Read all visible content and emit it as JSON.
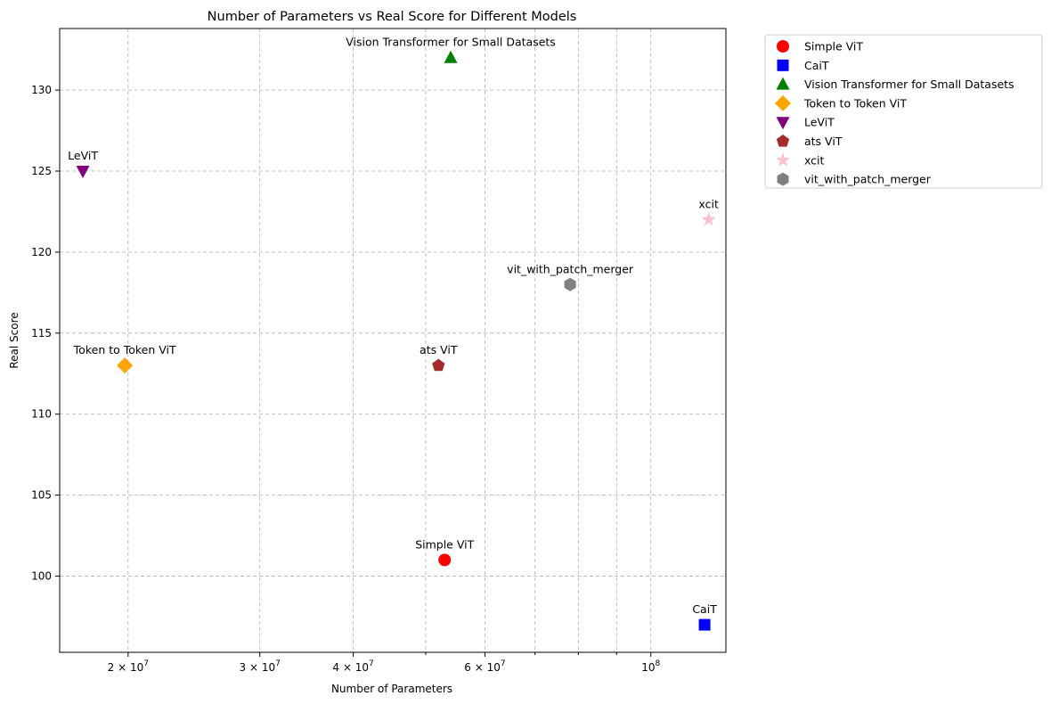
{
  "chart_data": {
    "type": "scatter",
    "title": "Number of Parameters vs Real Score for Different Models",
    "xlabel": "Number of Parameters",
    "ylabel": "Real Score",
    "xscale": "log",
    "xlim": [
      16200000,
      126000000
    ],
    "ylim": [
      95.3,
      133.8
    ],
    "grid": true,
    "legend_position": "outside-top-right",
    "x_ticks": [
      {
        "value": 20000000,
        "mantissa": "2",
        "label": "2 × 10^7"
      },
      {
        "value": 30000000,
        "mantissa": "3",
        "label": "3 × 10^7"
      },
      {
        "value": 40000000,
        "mantissa": "4",
        "label": "4 × 10^7"
      },
      {
        "value": 60000000,
        "mantissa": "6",
        "label": "6 × 10^7"
      },
      {
        "value": 100000000,
        "mantissa": "",
        "label": "10^8"
      }
    ],
    "x_minor_ticks": [
      50000000,
      70000000,
      80000000,
      90000000
    ],
    "y_ticks": [
      100,
      105,
      110,
      115,
      120,
      125,
      130
    ],
    "series": [
      {
        "name": "Simple ViT",
        "x": 53000000,
        "y": 101,
        "color": "#ff0000",
        "marker": "circle"
      },
      {
        "name": "CaiT",
        "x": 118000000,
        "y": 97,
        "color": "#0000ff",
        "marker": "square"
      },
      {
        "name": "Vision Transformer for Small Datasets",
        "x": 54000000,
        "y": 132,
        "color": "#008000",
        "marker": "triangle-up"
      },
      {
        "name": "Token to Token ViT",
        "x": 19800000,
        "y": 113,
        "color": "#ffa500",
        "marker": "diamond"
      },
      {
        "name": "LeViT",
        "x": 17400000,
        "y": 125,
        "color": "#800080",
        "marker": "triangle-down"
      },
      {
        "name": "ats ViT",
        "x": 52000000,
        "y": 113,
        "color": "#a52a2a",
        "marker": "pentagon"
      },
      {
        "name": "xcit",
        "x": 119500000,
        "y": 122,
        "color": "#ffc0cb",
        "marker": "star"
      },
      {
        "name": "vit_with_patch_merger",
        "x": 78000000,
        "y": 118,
        "color": "#808080",
        "marker": "hexagon"
      }
    ]
  }
}
